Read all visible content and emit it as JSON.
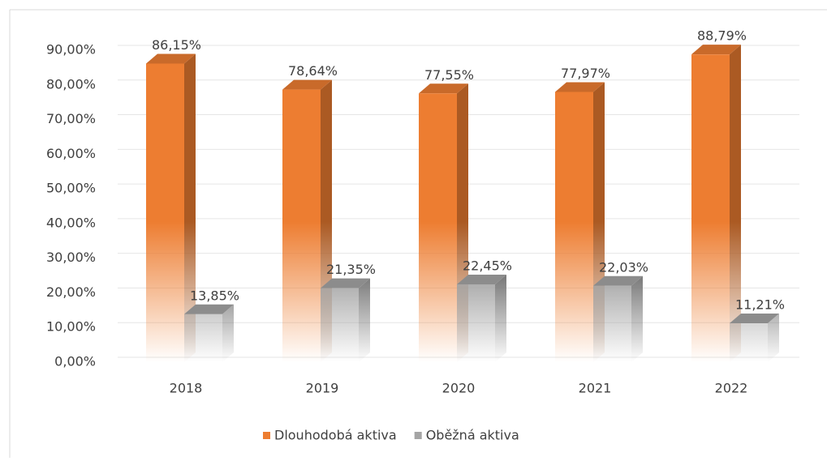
{
  "chart_data": {
    "type": "bar3d",
    "categories": [
      "2018",
      "2019",
      "2020",
      "2021",
      "2022"
    ],
    "series": [
      {
        "name": "Dlouhodobá aktiva",
        "color": "#ed7d31",
        "values": [
          86.15,
          78.64,
          77.55,
          77.97,
          88.79
        ],
        "value_labels": [
          "86,15%",
          "78,64%",
          "77,55%",
          "77,97%",
          "88,79%"
        ]
      },
      {
        "name": "Oběžná aktiva",
        "color": "#a5a5a5",
        "values": [
          13.85,
          21.35,
          22.45,
          22.03,
          11.21
        ],
        "value_labels": [
          "13,85%",
          "21,35%",
          "22,45%",
          "22,03%",
          "11,21%"
        ]
      }
    ],
    "ylim": [
      0,
      90
    ],
    "yticks": [
      {
        "value": 0,
        "label": "0,00%"
      },
      {
        "value": 10,
        "label": "10,00%"
      },
      {
        "value": 20,
        "label": "20,00%"
      },
      {
        "value": 30,
        "label": "30,00%"
      },
      {
        "value": 40,
        "label": "40,00%"
      },
      {
        "value": 50,
        "label": "50,00%"
      },
      {
        "value": 60,
        "label": "60,00%"
      },
      {
        "value": 70,
        "label": "70,00%"
      },
      {
        "value": 80,
        "label": "80,00%"
      },
      {
        "value": 90,
        "label": "90,00%"
      }
    ],
    "grid": true,
    "legend": "bottom"
  }
}
